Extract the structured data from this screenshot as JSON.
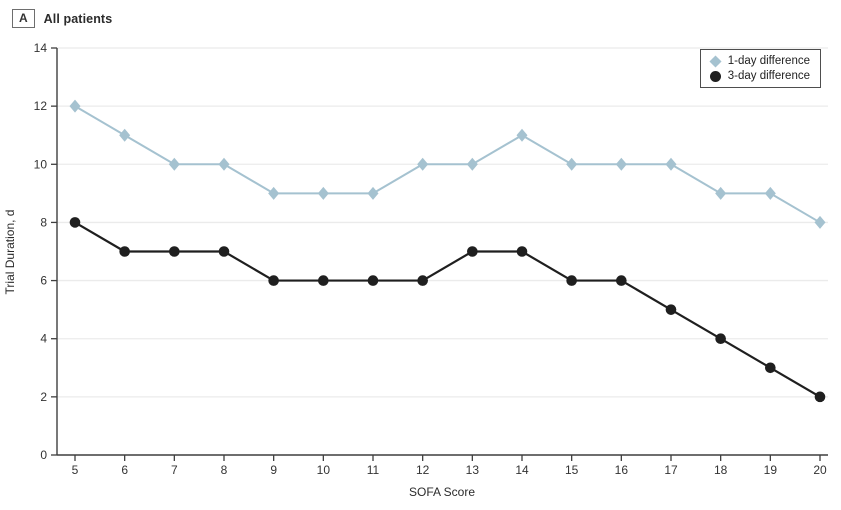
{
  "header": {
    "panel_letter": "A",
    "title": "All patients"
  },
  "chart_data": {
    "type": "line",
    "title": "",
    "xlabel": "SOFA Score",
    "ylabel": "Trial Duration, d",
    "x": [
      5,
      6,
      7,
      8,
      9,
      10,
      11,
      12,
      13,
      14,
      15,
      16,
      17,
      18,
      19,
      20
    ],
    "series": [
      {
        "name": "1-day difference",
        "marker": "diamond",
        "color": "#a5c2d0",
        "values": [
          12,
          11,
          10,
          10,
          9,
          9,
          9,
          10,
          10,
          11,
          10,
          10,
          10,
          9,
          9,
          8
        ]
      },
      {
        "name": "3-day difference",
        "marker": "circle",
        "color": "#1f1f1f",
        "values": [
          8,
          7,
          7,
          7,
          6,
          6,
          6,
          6,
          7,
          7,
          6,
          6,
          5,
          4,
          3,
          2
        ]
      }
    ],
    "xlim": [
      5,
      20
    ],
    "ylim": [
      0,
      14
    ],
    "xticks": [
      5,
      6,
      7,
      8,
      9,
      10,
      11,
      12,
      13,
      14,
      15,
      16,
      17,
      18,
      19,
      20
    ],
    "yticks": [
      0,
      2,
      4,
      6,
      8,
      10,
      12,
      14
    ],
    "grid": "horizontal",
    "legend_position": "top-right",
    "colors": {
      "grid": "#ebebeb",
      "axis": "#3f3f3f",
      "tick_text": "#333333"
    }
  }
}
